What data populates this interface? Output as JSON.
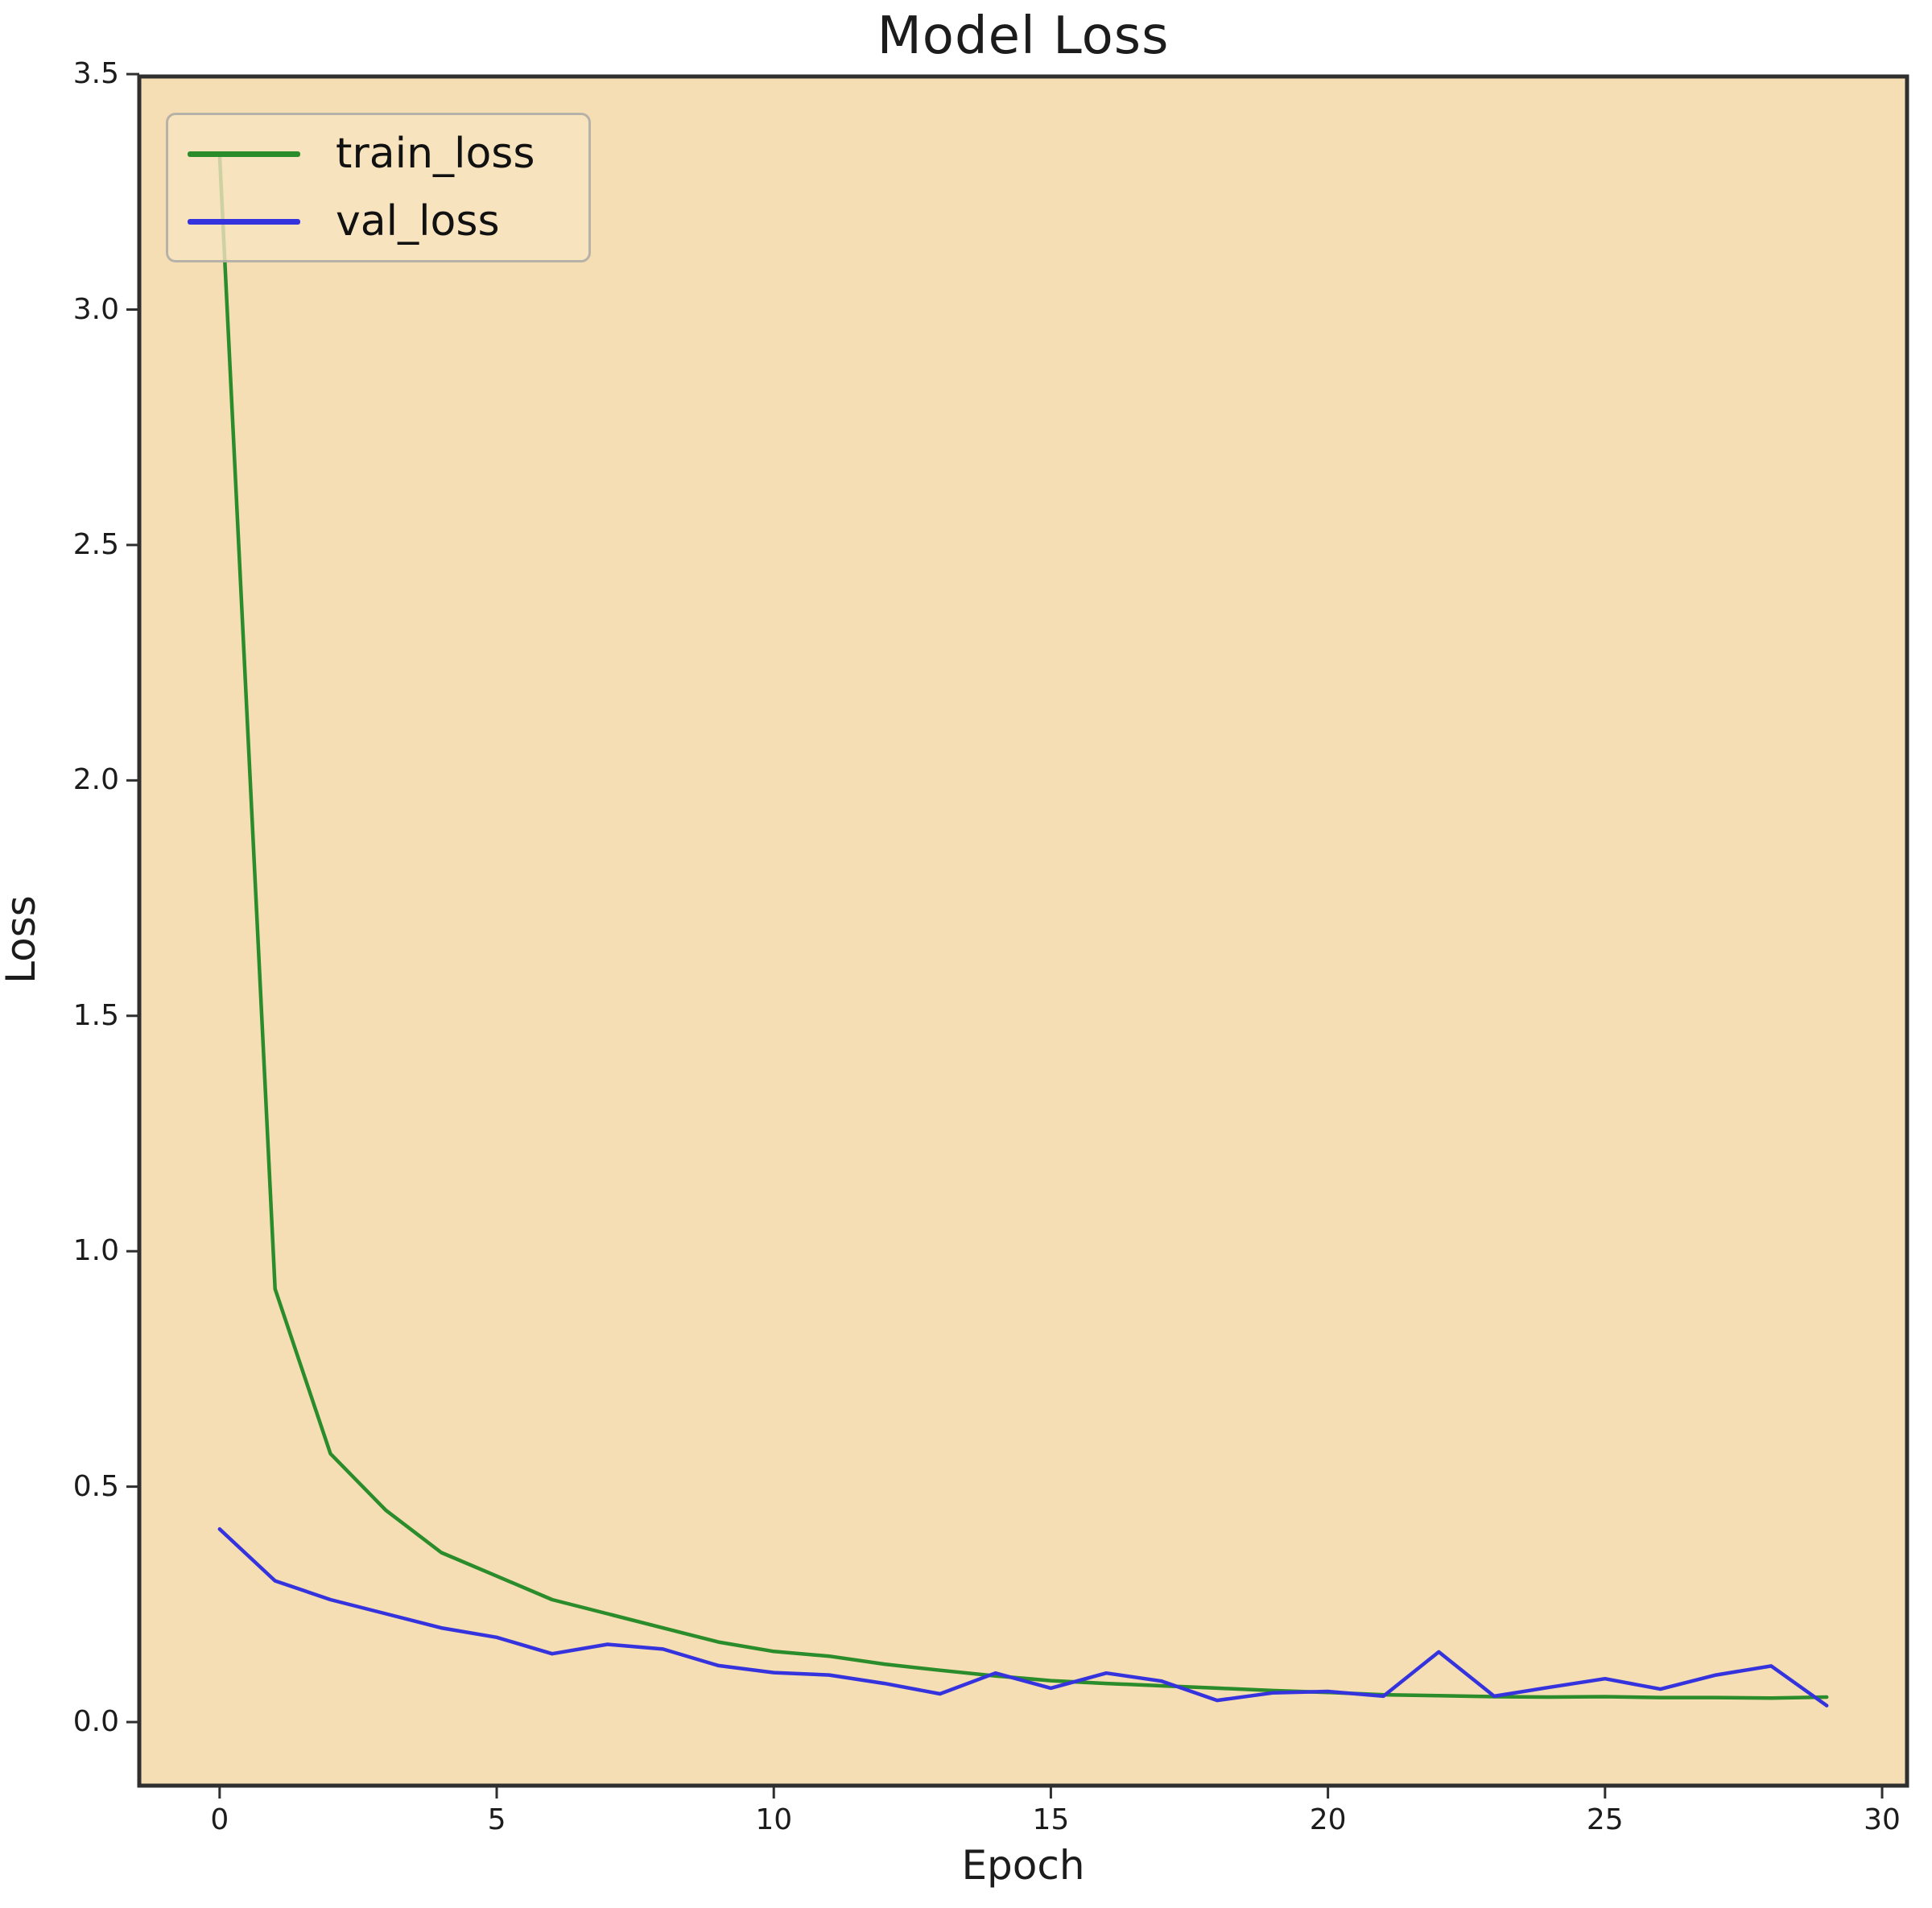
{
  "chart_data": {
    "type": "line",
    "title": "Model Loss",
    "xlabel": "Epoch",
    "ylabel": "Loss",
    "x": [
      0,
      1,
      2,
      3,
      4,
      5,
      6,
      7,
      8,
      9,
      10,
      11,
      12,
      13,
      14,
      15,
      16,
      17,
      18,
      19,
      20,
      21,
      22,
      23,
      24,
      25,
      26,
      27,
      28,
      29
    ],
    "series": [
      {
        "name": "train_loss",
        "color": "#2a8c2a",
        "values": [
          3.33,
          0.92,
          0.57,
          0.45,
          0.36,
          0.31,
          0.26,
          0.23,
          0.2,
          0.17,
          0.15,
          0.14,
          0.123,
          0.11,
          0.098,
          0.088,
          0.082,
          0.077,
          0.072,
          0.067,
          0.063,
          0.058,
          0.056,
          0.054,
          0.053,
          0.054,
          0.052,
          0.052,
          0.051,
          0.053
        ]
      },
      {
        "name": "val_loss",
        "color": "#3533dd",
        "values": [
          0.41,
          0.3,
          0.26,
          0.23,
          0.2,
          0.18,
          0.145,
          0.165,
          0.155,
          0.12,
          0.105,
          0.1,
          0.082,
          0.06,
          0.104,
          0.072,
          0.104,
          0.087,
          0.046,
          0.062,
          0.065,
          0.055,
          0.149,
          0.055,
          0.074,
          0.092,
          0.07,
          0.1,
          0.119,
          0.035
        ]
      }
    ],
    "xticks": [
      {
        "v": 0,
        "label": "0"
      },
      {
        "v": 5,
        "label": "5"
      },
      {
        "v": 10,
        "label": "10"
      },
      {
        "v": 15,
        "label": "15"
      },
      {
        "v": 20,
        "label": "20"
      },
      {
        "v": 25,
        "label": "25"
      },
      {
        "v": 30,
        "label": "30"
      }
    ],
    "yticks": [
      {
        "v": 0.0,
        "label": "0.0"
      },
      {
        "v": 0.5,
        "label": "0.5"
      },
      {
        "v": 1.0,
        "label": "1.0"
      },
      {
        "v": 1.5,
        "label": "1.5"
      },
      {
        "v": 2.0,
        "label": "2.0"
      },
      {
        "v": 2.5,
        "label": "2.5"
      },
      {
        "v": 3.0,
        "label": "3.0"
      },
      {
        "v": 3.5,
        "label": "3.5"
      }
    ],
    "xlim": [
      -1.45,
      30.45
    ],
    "ylim": [
      -0.135,
      3.495
    ],
    "grid": false,
    "axes_facecolor": "#f5deb3",
    "spine_color": "#2f2f2f",
    "legend": {
      "position": "upper left",
      "entries": [
        "train_loss",
        "val_loss"
      ]
    }
  }
}
